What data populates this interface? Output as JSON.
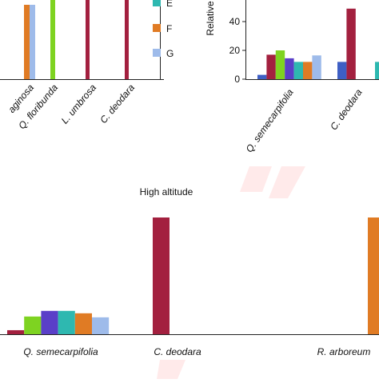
{
  "chart_data": [
    {
      "type": "bar",
      "title": "",
      "categories": [
        "Q. lanuginosa",
        "Q. floribunda",
        "L. umbrosa",
        "C. deodara"
      ],
      "category_labels": [
        "aginosa",
        "Q. floribunda",
        "L. umbrosa",
        "C. deodara"
      ],
      "legend": {
        "placement": "right",
        "entries": [
          {
            "name": "E",
            "color": "#2EB8B0"
          },
          {
            "name": "F",
            "color": "#E07B24"
          },
          {
            "name": "G",
            "color": "#9EBBEA"
          }
        ]
      },
      "series": [
        {
          "name": "F",
          "color": "#E07B24",
          "values": [
            100,
            0,
            0,
            0
          ]
        },
        {
          "name": "G",
          "color": "#9EBBEA",
          "values": [
            100,
            0,
            0,
            0
          ]
        },
        {
          "name": "",
          "color": "#7ED321",
          "values": [
            0,
            110,
            0,
            0
          ]
        },
        {
          "name": "",
          "color": "#A3203F",
          "values": [
            0,
            0,
            110,
            110
          ]
        }
      ]
    },
    {
      "type": "bar",
      "title": "",
      "ylabel": "Relative",
      "yticks": [
        0,
        20,
        40
      ],
      "ylim": [
        0,
        60
      ],
      "categories": [
        "Q. semecarpifolia",
        "C. deodara"
      ],
      "category_labels": [
        "Q. semecarpifolia",
        "C. deodara"
      ],
      "series": [
        {
          "color": "#3E5FC4",
          "values": [
            3,
            12
          ]
        },
        {
          "color": "#A3203F",
          "values": [
            17,
            49
          ]
        },
        {
          "color": "#7ED321",
          "values": [
            20,
            0
          ]
        },
        {
          "color": "#5A3FC8",
          "values": [
            14.5,
            0
          ]
        },
        {
          "color": "#2EB8B0",
          "values": [
            12,
            12
          ]
        },
        {
          "color": "#E07B24",
          "values": [
            12,
            0
          ]
        },
        {
          "color": "#9EBBEA",
          "values": [
            16.5,
            0
          ]
        }
      ]
    },
    {
      "type": "bar",
      "title": "High altitude",
      "ylim": [
        0,
        150
      ],
      "categories": [
        "Q. semecarpifolia",
        "C. deodara",
        "R. arboreum"
      ],
      "category_labels": [
        "Q. semecarpifolia",
        "C. deodara",
        "R. arboreum"
      ],
      "series": [
        {
          "color": "#A3203F",
          "values": [
            5,
            145,
            0
          ]
        },
        {
          "color": "#7ED321",
          "values": [
            22,
            0,
            0
          ]
        },
        {
          "color": "#5A3FC8",
          "values": [
            29,
            0,
            0
          ]
        },
        {
          "color": "#2EB8B0",
          "values": [
            29,
            0,
            0
          ]
        },
        {
          "color": "#E07B24",
          "values": [
            26,
            0,
            145
          ]
        },
        {
          "color": "#9EBBEA",
          "values": [
            21,
            0,
            0
          ]
        }
      ]
    }
  ]
}
